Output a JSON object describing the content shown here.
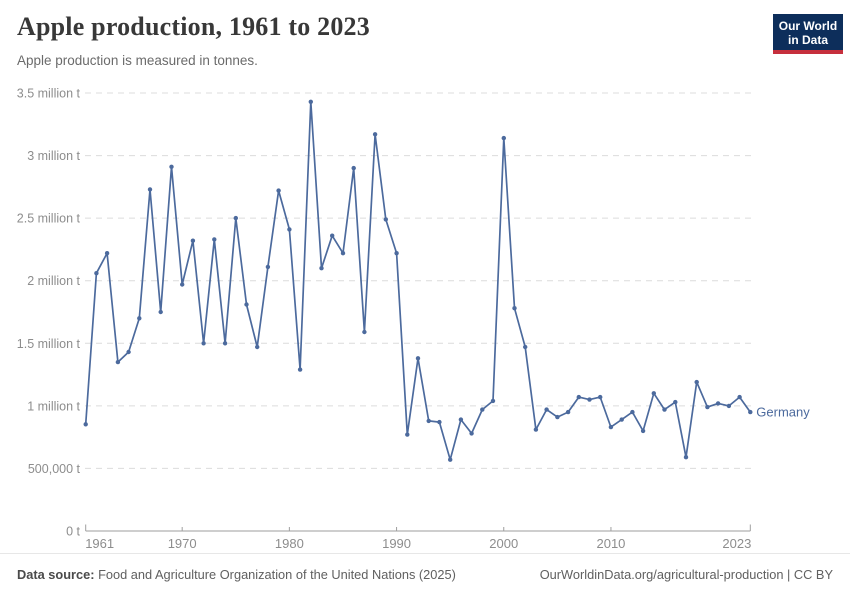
{
  "header": {
    "title": "Apple production, 1961 to 2023",
    "subtitle": "Apple production is measured in tonnes.",
    "logo_line1": "Our World",
    "logo_line2": "in Data"
  },
  "footer": {
    "source_label": "Data source:",
    "source_text": " Food and Agriculture Organization of the United Nations (2025)",
    "right_text": "OurWorldinData.org/agricultural-production | CC BY"
  },
  "colors": {
    "line": "#4c6a9d",
    "grid": "#dcdcdc",
    "axis": "#9e9e9e",
    "tick_label": "#8d8d8d",
    "logo_bg": "#0d2e5b",
    "logo_stripe": "#c62f3d"
  },
  "chart_data": {
    "type": "line",
    "title": "Apple production, 1961 to 2023",
    "unit": "tonnes",
    "entity_label": "Germany",
    "grid": "dashed",
    "legend_position": "end-of-line-label",
    "ylim": [
      0,
      3500000
    ],
    "yticks": [
      {
        "value": 0,
        "label": "0 t"
      },
      {
        "value": 500000,
        "label": "500,000 t"
      },
      {
        "value": 1000000,
        "label": "1 million t"
      },
      {
        "value": 1500000,
        "label": "1.5 million t"
      },
      {
        "value": 2000000,
        "label": "2 million t"
      },
      {
        "value": 2500000,
        "label": "2.5 million t"
      },
      {
        "value": 3000000,
        "label": "3 million t"
      },
      {
        "value": 3500000,
        "label": "3.5 million t"
      }
    ],
    "xticks": [
      1961,
      1970,
      1980,
      1990,
      2000,
      2010,
      2023
    ],
    "x": [
      1961,
      1962,
      1963,
      1964,
      1965,
      1966,
      1967,
      1968,
      1969,
      1970,
      1971,
      1972,
      1973,
      1974,
      1975,
      1976,
      1977,
      1978,
      1979,
      1980,
      1981,
      1982,
      1983,
      1984,
      1985,
      1986,
      1987,
      1988,
      1989,
      1990,
      1991,
      1992,
      1993,
      1994,
      1995,
      1996,
      1997,
      1998,
      1999,
      2000,
      2001,
      2002,
      2003,
      2004,
      2005,
      2006,
      2007,
      2008,
      2009,
      2010,
      2011,
      2012,
      2013,
      2014,
      2015,
      2016,
      2017,
      2018,
      2019,
      2020,
      2021,
      2022,
      2023
    ],
    "series": [
      {
        "name": "Germany",
        "color": "#4c6a9d",
        "values": [
          853000,
          2060000,
          2220000,
          1350000,
          1430000,
          1700000,
          2730000,
          1750000,
          2910000,
          1970000,
          2320000,
          1500000,
          2330000,
          1500000,
          2500000,
          1810000,
          1470000,
          2110000,
          2720000,
          2410000,
          1290000,
          3430000,
          2100000,
          2360000,
          2220000,
          2900000,
          1590000,
          3170000,
          2490000,
          2220000,
          770000,
          1380000,
          880000,
          870000,
          570000,
          890000,
          780000,
          970000,
          1040000,
          3140000,
          1780000,
          1470000,
          810000,
          970000,
          910000,
          950000,
          1070000,
          1050000,
          1070000,
          830000,
          890000,
          950000,
          800000,
          1100000,
          970000,
          1030000,
          590000,
          1190000,
          990000,
          1020000,
          1000000,
          1070000,
          950000
        ]
      }
    ]
  }
}
